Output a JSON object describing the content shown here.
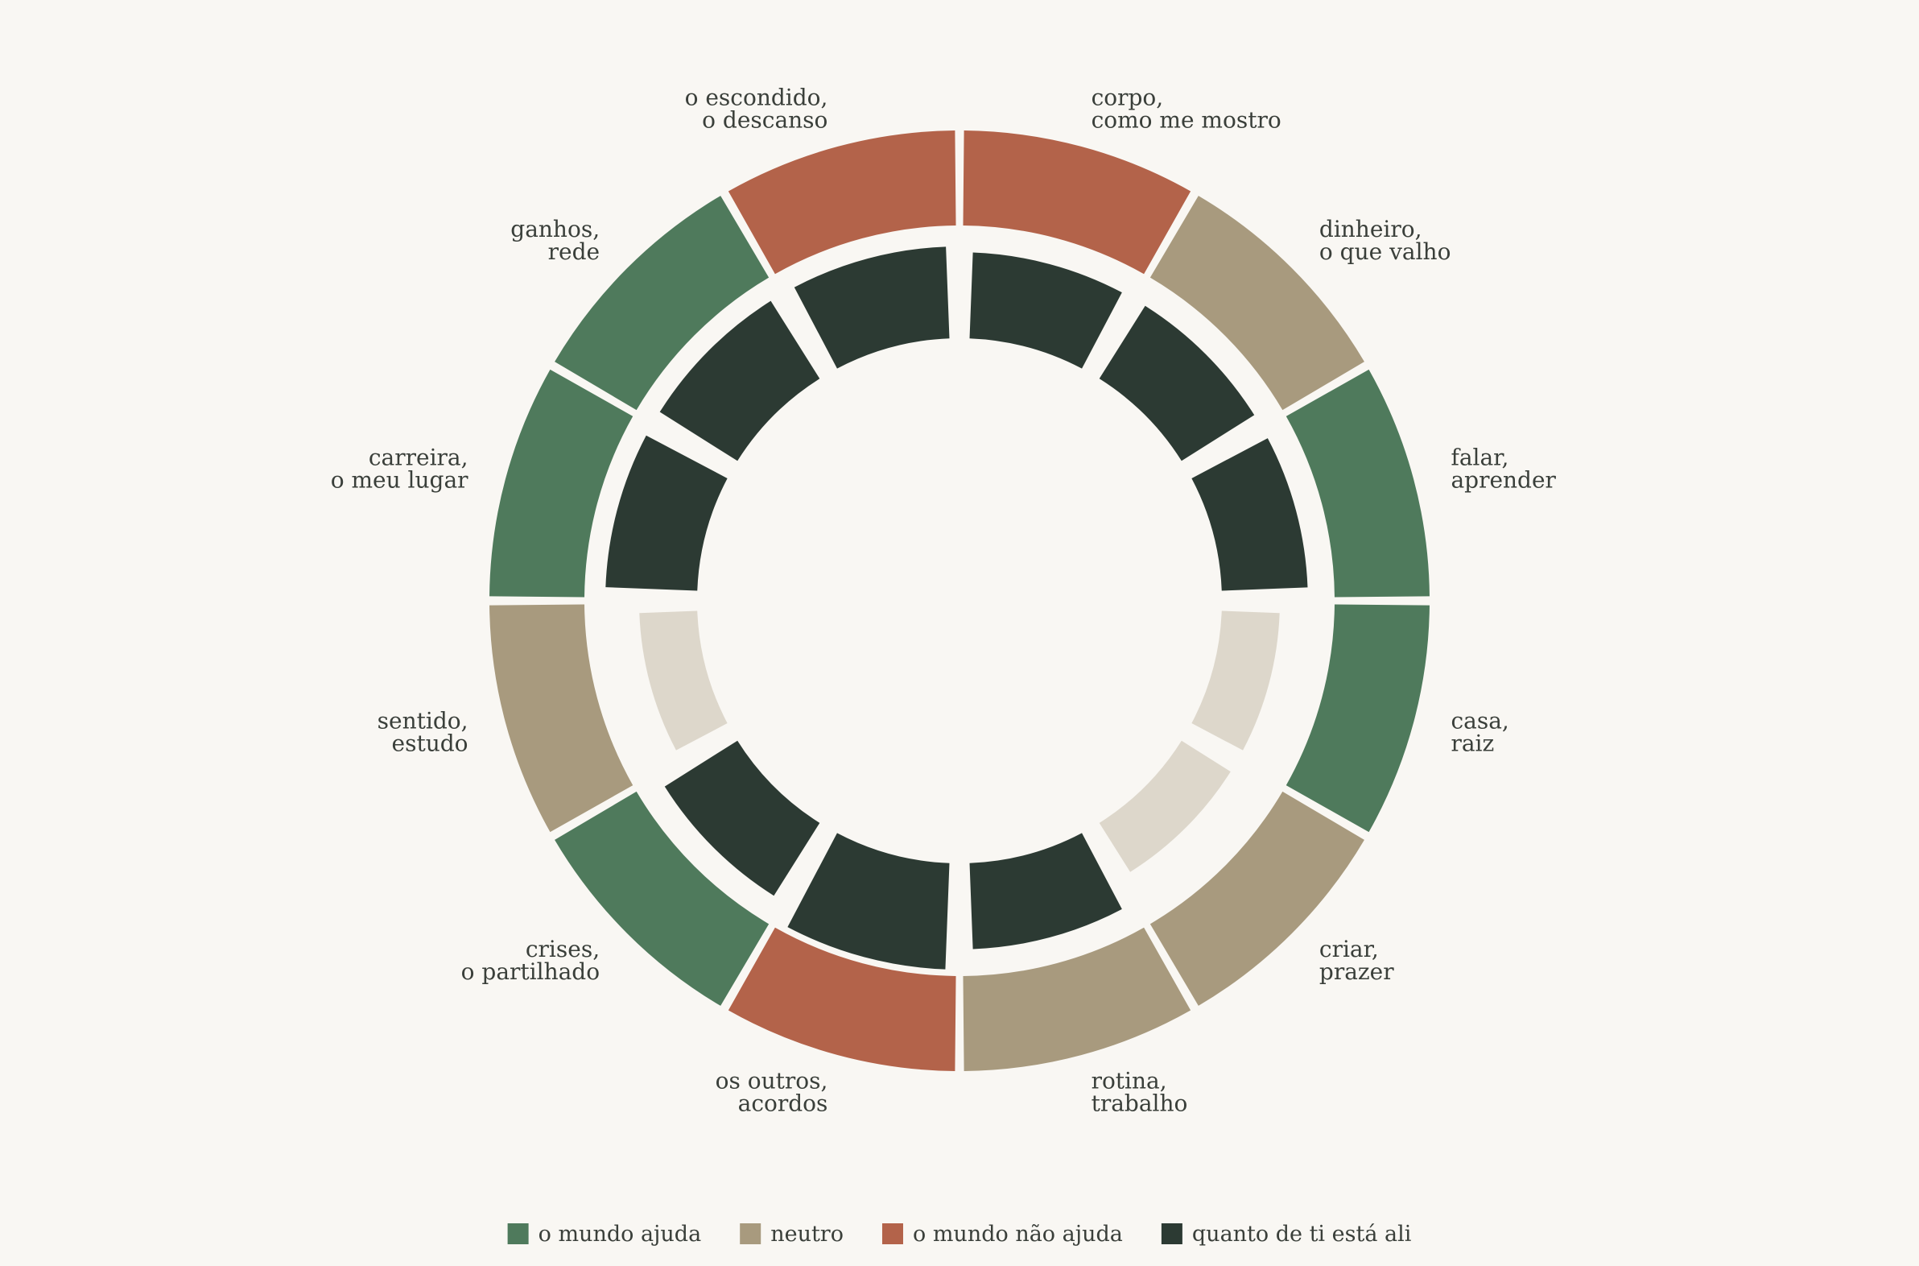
{
  "chart_data": {
    "type": "donut",
    "segment_count": 12,
    "segments": [
      {
        "label_lines": [
          "corpo,",
          "como me mostro"
        ],
        "world": "o mundo não ajuda",
        "self": 0.58
      },
      {
        "label_lines": [
          "dinheiro,",
          "o que valho"
        ],
        "world": "neutro",
        "self": 0.58
      },
      {
        "label_lines": [
          "falar,",
          "aprender"
        ],
        "world": "o mundo ajuda",
        "self": 0.58
      },
      {
        "label_lines": [
          "casa,",
          "raiz"
        ],
        "world": "o mundo ajuda",
        "self": 0.0
      },
      {
        "label_lines": [
          "criar,",
          "prazer"
        ],
        "world": "neutro",
        "self": 0.0
      },
      {
        "label_lines": [
          "rotina,",
          "trabalho"
        ],
        "world": "neutro",
        "self": 0.58
      },
      {
        "label_lines": [
          "os outros,",
          "acordos"
        ],
        "world": "o mundo não ajuda",
        "self": 1.0
      },
      {
        "label_lines": [
          "crises,",
          "o partilhado"
        ],
        "world": "o mundo ajuda",
        "self": 0.58
      },
      {
        "label_lines": [
          "sentido,",
          "estudo"
        ],
        "world": "neutro",
        "self": 0.0
      },
      {
        "label_lines": [
          "carreira,",
          "o meu lugar"
        ],
        "world": "o mundo ajuda",
        "self": 0.7
      },
      {
        "label_lines": [
          "ganhos,",
          "rede"
        ],
        "world": "o mundo ajuda",
        "self": 0.7
      },
      {
        "label_lines": [
          "o escondido,",
          "o descanso"
        ],
        "world": "o mundo não ajuda",
        "self": 0.7
      }
    ],
    "legend": [
      {
        "key": "o mundo ajuda",
        "label": "o mundo ajuda",
        "color": "#4f7a5c"
      },
      {
        "key": "neutro",
        "label": "neutro",
        "color": "#a89a7e"
      },
      {
        "key": "o mundo não ajuda",
        "label": "o mundo não ajuda",
        "color": "#b3634a"
      },
      {
        "key": "self",
        "label": "quanto de ti está ali",
        "color": "#2c3a33"
      }
    ],
    "colors": {
      "self_zero": "#ddd7cb",
      "background": "#f9f7f3",
      "text": "#3a3f3a"
    },
    "legend_position": "bottom"
  }
}
